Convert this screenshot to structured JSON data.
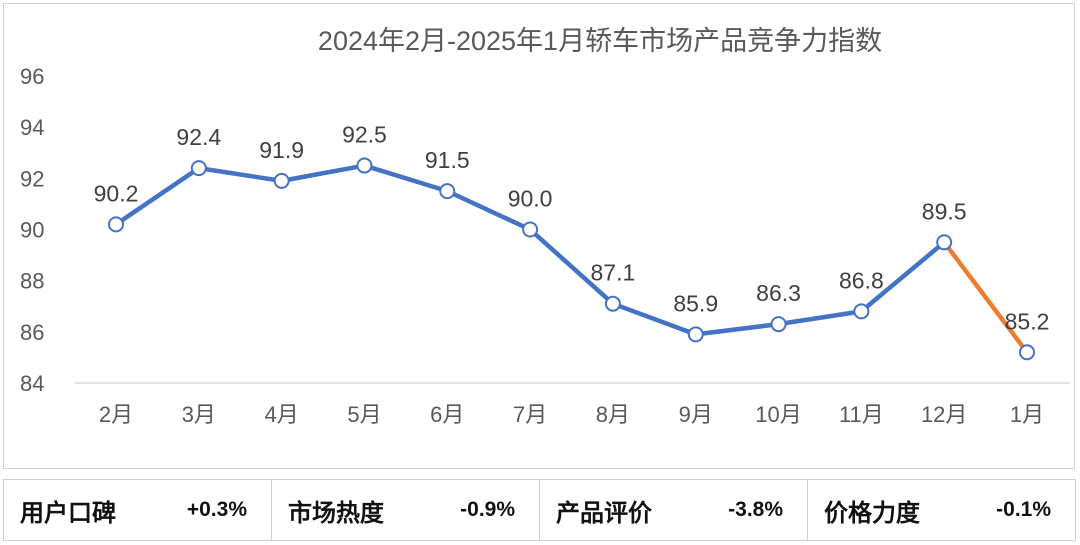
{
  "chart_data": {
    "type": "line",
    "title": "2024年2月-2025年1月轿车市场产品竞争力指数",
    "categories": [
      "2月",
      "3月",
      "4月",
      "5月",
      "6月",
      "7月",
      "8月",
      "9月",
      "10月",
      "11月",
      "12月",
      "1月"
    ],
    "values": [
      90.2,
      92.4,
      91.9,
      92.5,
      91.5,
      90.0,
      87.1,
      85.9,
      86.3,
      86.8,
      89.5,
      85.2
    ],
    "data_labels": [
      "90.2",
      "92.4",
      "91.9",
      "92.5",
      "91.5",
      "90.0",
      "87.1",
      "85.9",
      "86.3",
      "86.8",
      "89.5",
      "85.2"
    ],
    "ylim": [
      84,
      96
    ],
    "yticks": [
      "84",
      "86",
      "88",
      "90",
      "92",
      "94",
      "96"
    ],
    "grid": false,
    "colors": {
      "line": "#4472C4",
      "last_segment": "#ED7D31",
      "drop_line": "#C9D7EE"
    }
  },
  "summary": [
    {
      "label": "用户口碑",
      "value": "+0.3%"
    },
    {
      "label": "市场热度",
      "value": "-0.9%"
    },
    {
      "label": "产品评价",
      "value": "-3.8%"
    },
    {
      "label": "价格力度",
      "value": "-0.1%"
    }
  ]
}
